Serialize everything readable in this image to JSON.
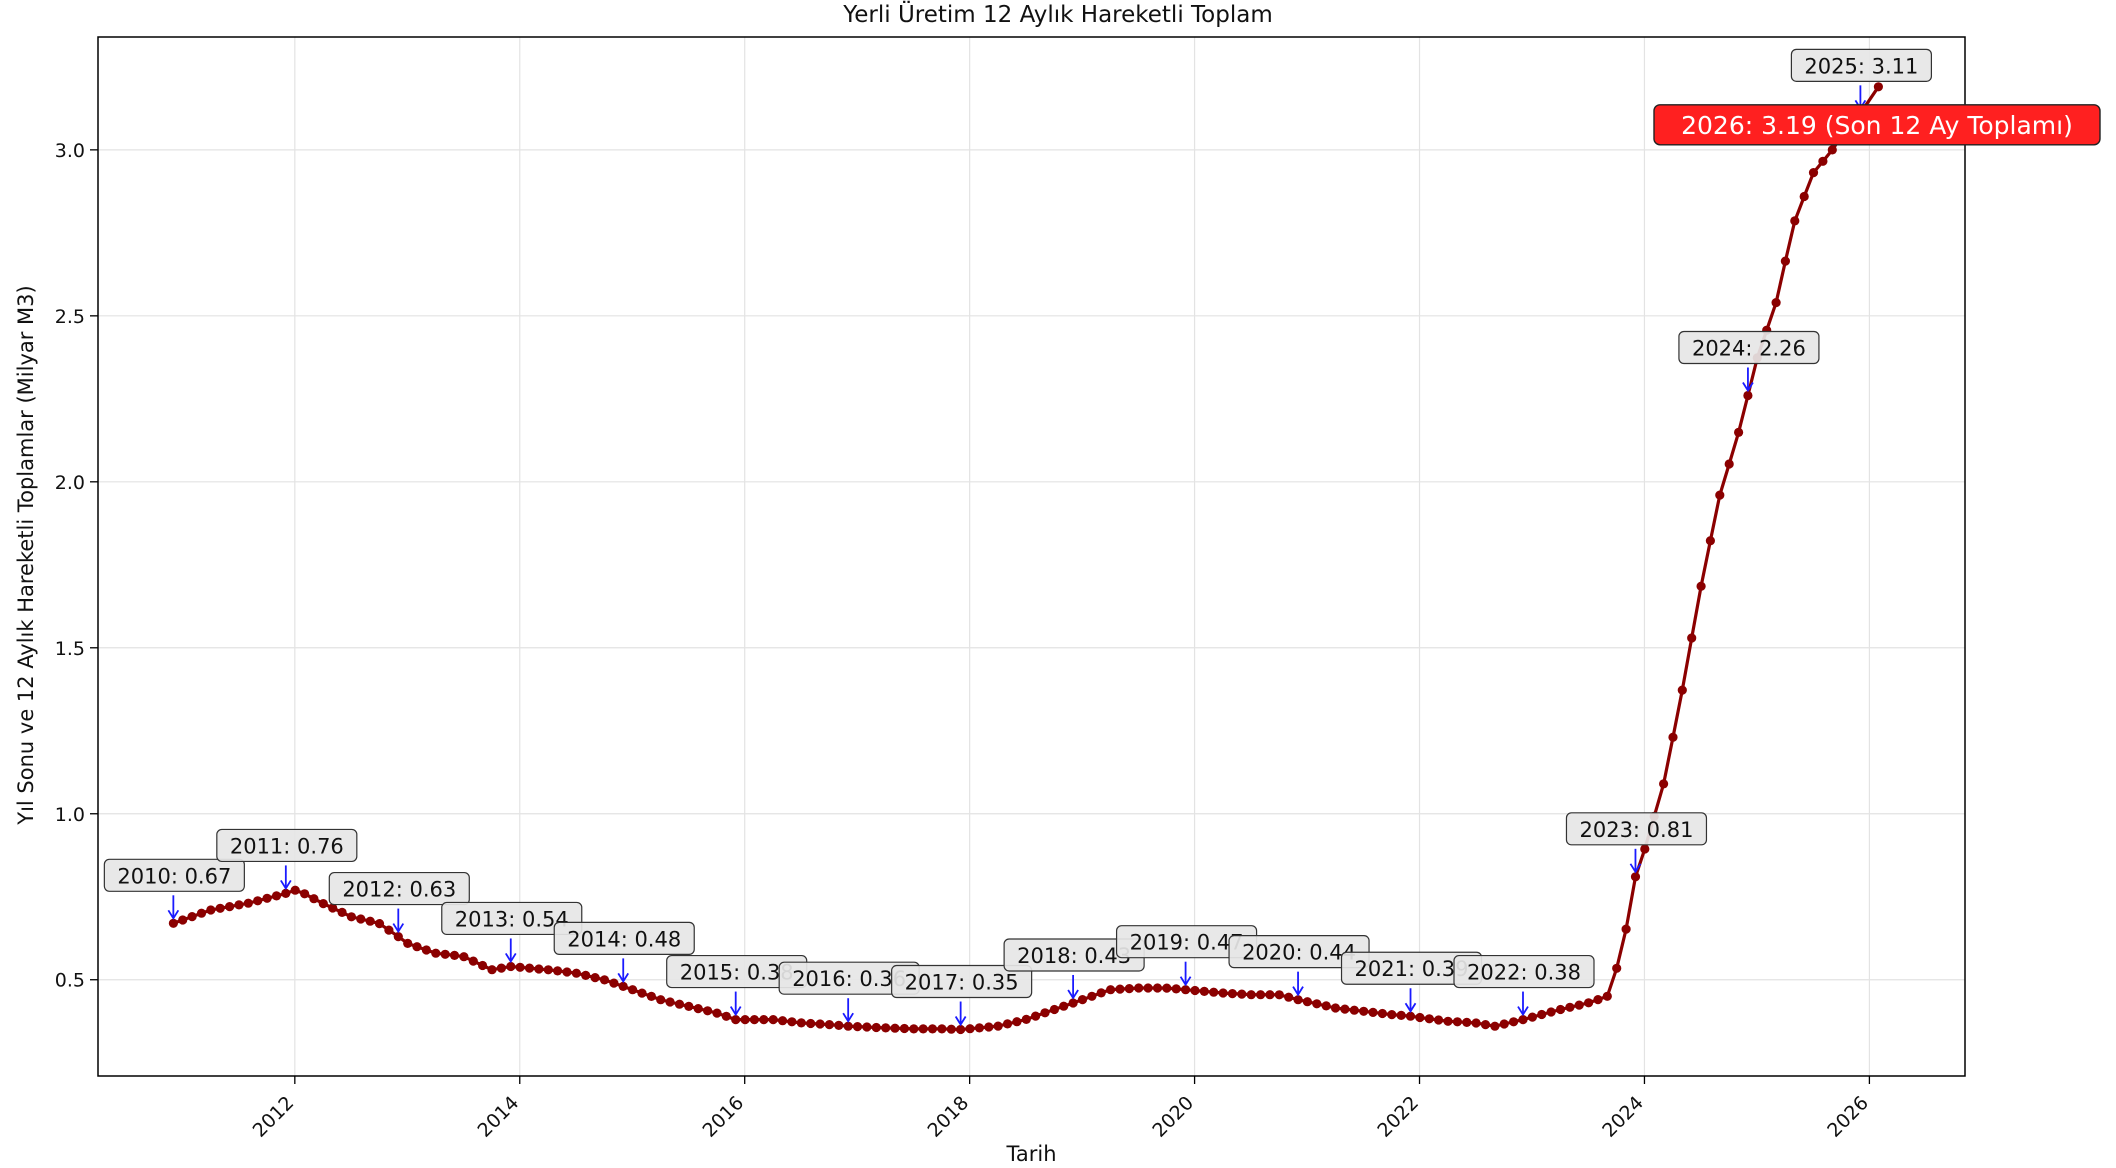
{
  "chart_data": {
    "type": "line",
    "title": "Yerli Üretim 12 Aylık Hareketli Toplam",
    "xlabel": "Tarih",
    "ylabel": "Yıl Sonu ve 12 Aylık Hareketli Toplamlar (Milyar M3)",
    "xlim": [
      2010.25,
      2026.85
    ],
    "ylim": [
      0.21,
      3.34
    ],
    "x_ticks": [
      2012,
      2014,
      2016,
      2018,
      2020,
      2022,
      2024,
      2026
    ],
    "x_tick_labels": [
      "2012",
      "2014",
      "2016",
      "2018",
      "2020",
      "2022",
      "2024",
      "2026"
    ],
    "y_ticks": [
      0.5,
      1.0,
      1.5,
      2.0,
      2.5,
      3.0
    ],
    "y_tick_labels": [
      "0.5",
      "1.0",
      "1.5",
      "2.0",
      "2.5",
      "3.0"
    ],
    "grid": true,
    "line_color": "#8b0000",
    "anchors": [
      [
        2010.92,
        0.67
      ],
      [
        2011.25,
        0.71
      ],
      [
        2011.58,
        0.73
      ],
      [
        2011.92,
        0.76
      ],
      [
        2012.0,
        0.77
      ],
      [
        2012.08,
        0.76
      ],
      [
        2012.25,
        0.73
      ],
      [
        2012.5,
        0.69
      ],
      [
        2012.75,
        0.67
      ],
      [
        2012.92,
        0.63
      ],
      [
        2013.0,
        0.61
      ],
      [
        2013.25,
        0.58
      ],
      [
        2013.5,
        0.57
      ],
      [
        2013.75,
        0.53
      ],
      [
        2013.92,
        0.54
      ],
      [
        2014.25,
        0.53
      ],
      [
        2014.5,
        0.52
      ],
      [
        2014.75,
        0.5
      ],
      [
        2014.92,
        0.48
      ],
      [
        2015.25,
        0.44
      ],
      [
        2015.5,
        0.42
      ],
      [
        2015.75,
        0.4
      ],
      [
        2015.92,
        0.38
      ],
      [
        2016.25,
        0.38
      ],
      [
        2016.5,
        0.37
      ],
      [
        2016.75,
        0.365
      ],
      [
        2016.92,
        0.36
      ],
      [
        2017.25,
        0.355
      ],
      [
        2017.5,
        0.352
      ],
      [
        2017.75,
        0.352
      ],
      [
        2017.92,
        0.35
      ],
      [
        2018.25,
        0.36
      ],
      [
        2018.5,
        0.38
      ],
      [
        2018.75,
        0.41
      ],
      [
        2018.92,
        0.43
      ],
      [
        2019.25,
        0.47
      ],
      [
        2019.5,
        0.475
      ],
      [
        2019.75,
        0.475
      ],
      [
        2019.92,
        0.47
      ],
      [
        2020.25,
        0.46
      ],
      [
        2020.5,
        0.455
      ],
      [
        2020.75,
        0.455
      ],
      [
        2020.92,
        0.44
      ],
      [
        2021.25,
        0.415
      ],
      [
        2021.5,
        0.405
      ],
      [
        2021.75,
        0.395
      ],
      [
        2021.92,
        0.39
      ],
      [
        2022.25,
        0.375
      ],
      [
        2022.5,
        0.37
      ],
      [
        2022.67,
        0.36
      ],
      [
        2022.92,
        0.38
      ],
      [
        2023.25,
        0.41
      ],
      [
        2023.5,
        0.43
      ],
      [
        2023.67,
        0.45
      ],
      [
        2023.75,
        0.53
      ],
      [
        2023.83,
        0.64
      ],
      [
        2023.92,
        0.81
      ],
      [
        2024.0,
        0.89
      ],
      [
        2024.17,
        1.09
      ],
      [
        2024.33,
        1.36
      ],
      [
        2024.5,
        1.68
      ],
      [
        2024.67,
        1.96
      ],
      [
        2024.83,
        2.14
      ],
      [
        2024.92,
        2.26
      ],
      [
        2025.0,
        2.37
      ],
      [
        2025.17,
        2.54
      ],
      [
        2025.33,
        2.78
      ],
      [
        2025.5,
        2.93
      ],
      [
        2025.67,
        3.0
      ],
      [
        2025.83,
        3.08
      ],
      [
        2025.92,
        3.11
      ],
      [
        2026.08,
        3.19
      ]
    ],
    "annotations": [
      {
        "label": "2010: 0.67",
        "x": 2010.92,
        "y": 0.67
      },
      {
        "label": "2011: 0.76",
        "x": 2011.92,
        "y": 0.76
      },
      {
        "label": "2012: 0.63",
        "x": 2012.92,
        "y": 0.63
      },
      {
        "label": "2013: 0.54",
        "x": 2013.92,
        "y": 0.54
      },
      {
        "label": "2014: 0.48",
        "x": 2014.92,
        "y": 0.48
      },
      {
        "label": "2015: 0.38",
        "x": 2015.92,
        "y": 0.38
      },
      {
        "label": "2016: 0.36",
        "x": 2016.92,
        "y": 0.36
      },
      {
        "label": "2017: 0.35",
        "x": 2017.92,
        "y": 0.35
      },
      {
        "label": "2018: 0.43",
        "x": 2018.92,
        "y": 0.43
      },
      {
        "label": "2019: 0.47",
        "x": 2019.92,
        "y": 0.47
      },
      {
        "label": "2020: 0.44",
        "x": 2020.92,
        "y": 0.44
      },
      {
        "label": "2021: 0.39",
        "x": 2021.92,
        "y": 0.39
      },
      {
        "label": "2022: 0.38",
        "x": 2022.92,
        "y": 0.38
      },
      {
        "label": "2023: 0.81",
        "x": 2023.92,
        "y": 0.81
      },
      {
        "label": "2024: 2.26",
        "x": 2024.92,
        "y": 2.26
      },
      {
        "label": "2025: 3.11",
        "x": 2025.92,
        "y": 3.11
      }
    ],
    "highlight": {
      "label": "2026: 3.19 (Son 12 Ay Toplamı)",
      "x": 2026.08,
      "y": 3.19,
      "color": "#ff2020"
    }
  }
}
